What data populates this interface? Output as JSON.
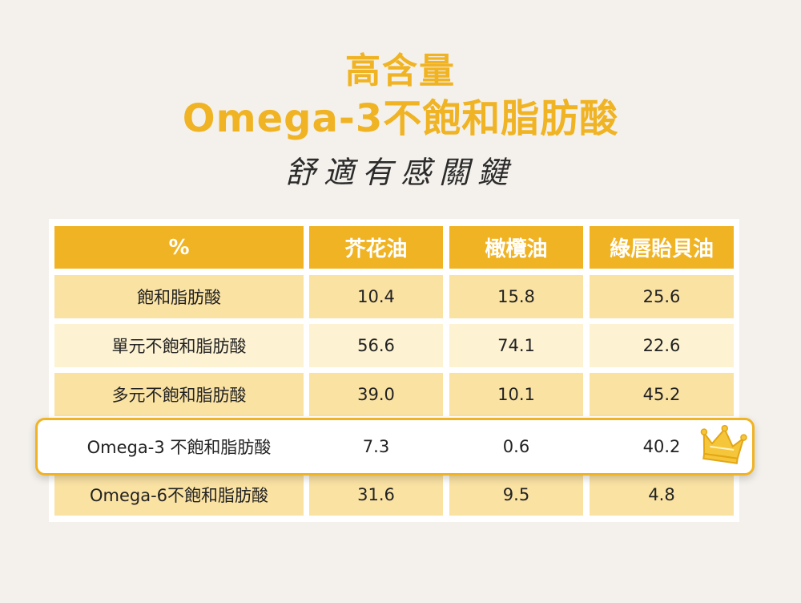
{
  "title": {
    "line1": "高含量",
    "line2": "Omega-3不飽和脂肪酸",
    "subtitle": "舒適有感關鍵"
  },
  "chart_data": {
    "type": "table",
    "headers": [
      "%",
      "芥花油",
      "橄欖油",
      "綠唇貽貝油"
    ],
    "rows": [
      {
        "label": "飽和脂肪酸",
        "values": [
          "10.4",
          "15.8",
          "25.6"
        ]
      },
      {
        "label": "單元不飽和脂肪酸",
        "values": [
          "56.6",
          "74.1",
          "22.6"
        ]
      },
      {
        "label": "多元不飽和脂肪酸",
        "values": [
          "39.0",
          "10.1",
          "45.2"
        ]
      },
      {
        "label": "Omega-3 不飽和脂肪酸",
        "values": [
          "7.3",
          "0.6",
          "40.2"
        ]
      },
      {
        "label": "Omega-6不飽和脂肪酸",
        "values": [
          "31.6",
          "9.5",
          "4.8"
        ]
      }
    ],
    "highlight_row": 3
  },
  "colors": {
    "accent": "#f0b323",
    "row_dark": "#fae2a3",
    "row_light": "#fdf2d2",
    "background": "#f4f1ec"
  },
  "icons": {
    "highlight_marker": "crown-icon"
  }
}
